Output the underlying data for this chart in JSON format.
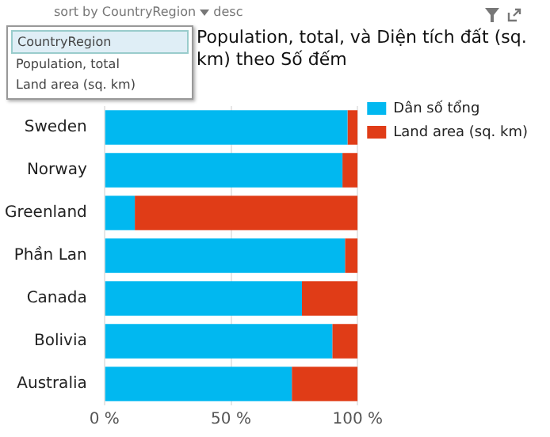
{
  "chart_data": {
    "type": "bar",
    "title": "Population, total, và Diện tích đất (sq. km) theo Số đếm",
    "annotations": [
      "sort by",
      "CountryRegion",
      "desc",
      "CountryRegion",
      "Population, total",
      "Land area (sq. km)"
    ],
    "orientation": "horizontal",
    "stacked": true,
    "categories": [
      "Sweden",
      "Norway",
      "Greenland",
      "Phần Lan",
      "Canada",
      "Bolivia",
      "Australia"
    ],
    "series": [
      {
        "name": "Dân số tổng",
        "color": "#01b8f0",
        "values": [
          96,
          94,
          12,
          95,
          78,
          90,
          74
        ]
      },
      {
        "name": "Land area (sq. km)",
        "color": "#e03c17",
        "values": [
          4,
          6,
          88,
          5,
          22,
          10,
          26
        ]
      }
    ],
    "xlim": [
      0,
      100
    ],
    "xticks": [
      {
        "value": 0,
        "label": "0 %"
      },
      {
        "value": 50,
        "label": "50 %"
      },
      {
        "value": 100,
        "label": "100 %"
      }
    ],
    "grid": "x",
    "legend": "top right"
  }
}
